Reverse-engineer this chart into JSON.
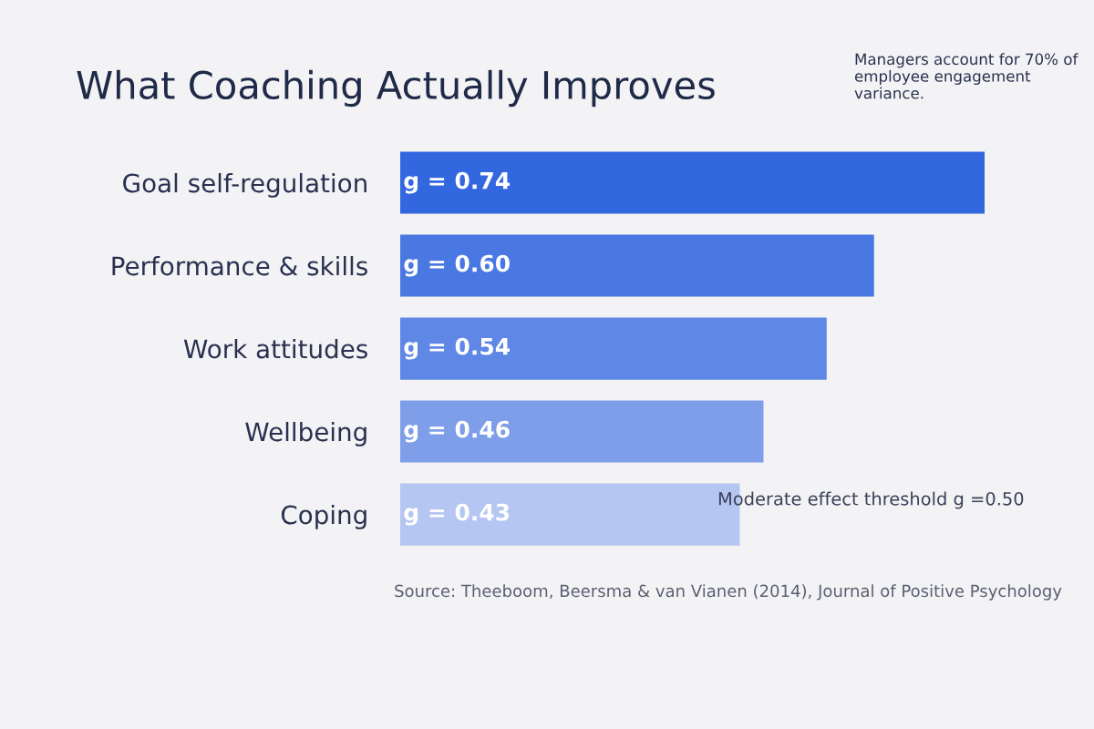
{
  "chart_data": {
    "type": "bar",
    "orientation": "horizontal",
    "title": "What Coaching Actually Improves",
    "categories": [
      "Goal self-regulation",
      "Performance & skills",
      "Work attitudes",
      "Wellbeing",
      "Coping"
    ],
    "values": [
      0.74,
      0.6,
      0.54,
      0.46,
      0.43
    ],
    "colors": [
      "#3367e0",
      "#4a78e3",
      "#5f87e6",
      "#7f9ee9",
      "#b5c6f2"
    ],
    "value_labels": [
      "g = 0.74",
      "g = 0.60",
      "g = 0.54",
      "g = 0.46",
      "g = 0.43"
    ],
    "annotations": [
      "Managers account for 70% of employee engagement variance.",
      "Moderate effect threshold g =0.50",
      "Source: Theeboom, Beersma & van Vianen (2014), Journal of Positive Psychology"
    ],
    "grid": false,
    "legend": false
  }
}
